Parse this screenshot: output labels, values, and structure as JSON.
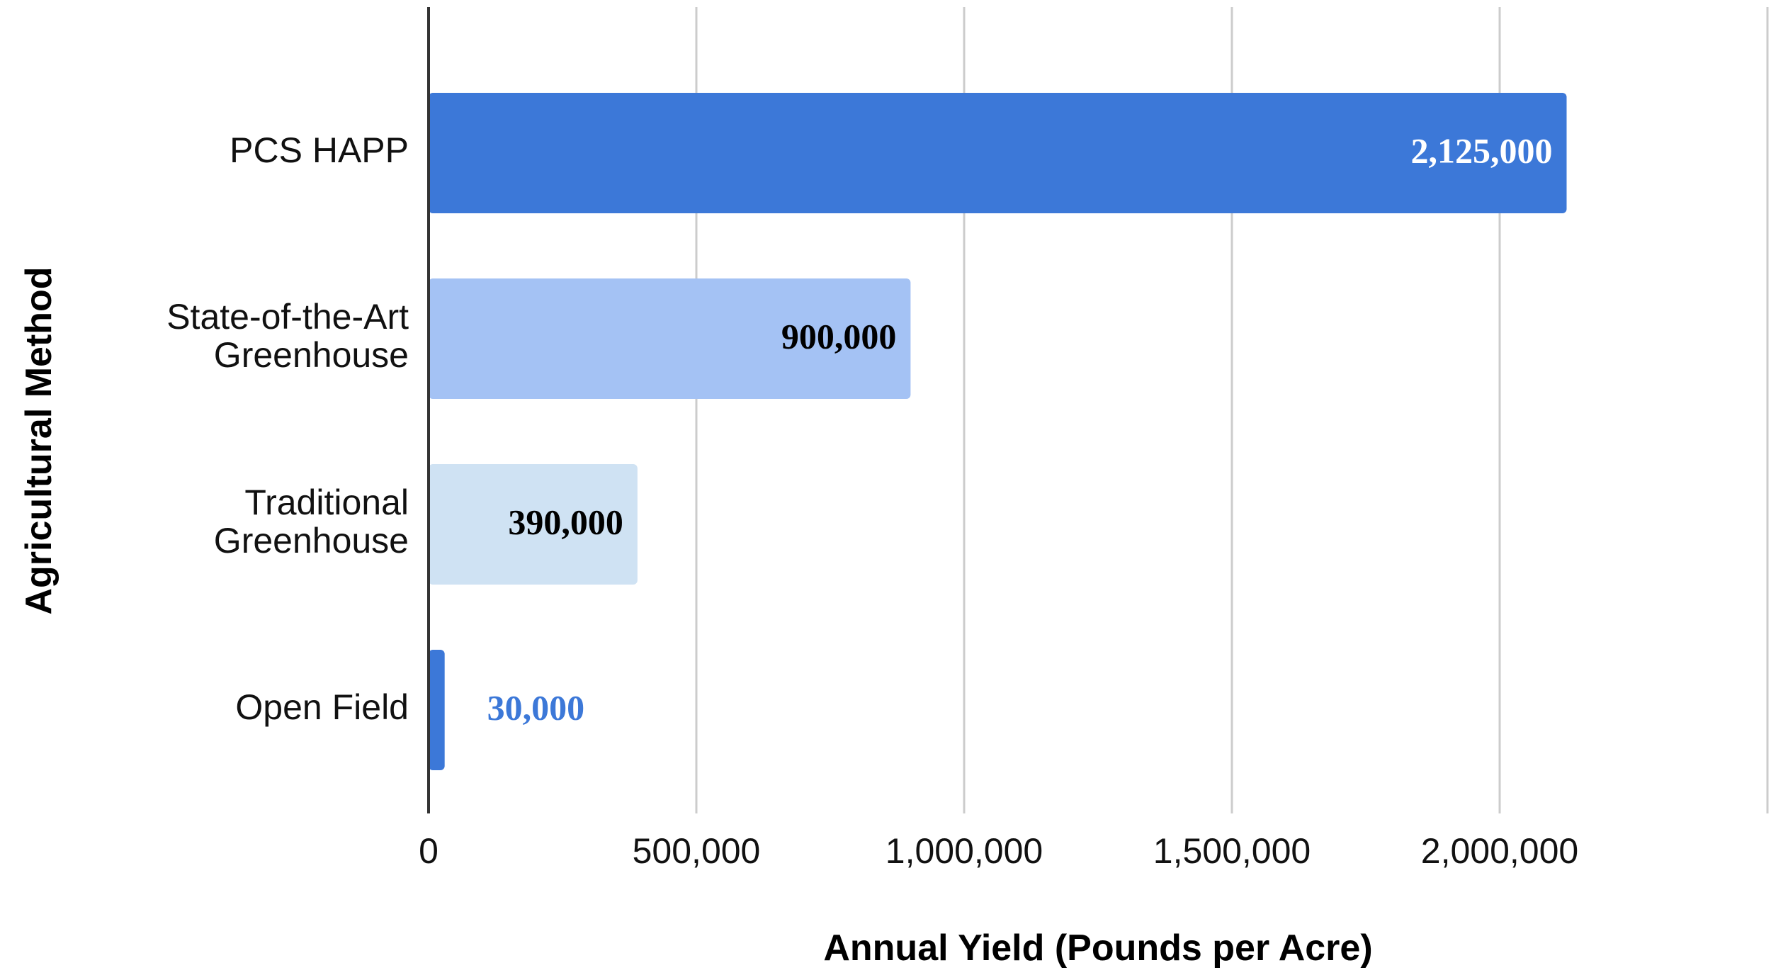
{
  "chart_data": {
    "type": "bar",
    "orientation": "horizontal",
    "categories": [
      [
        "PCS HAPP"
      ],
      [
        "State-of-the-Art",
        "Greenhouse"
      ],
      [
        "Traditional",
        "Greenhouse"
      ],
      [
        "Open Field"
      ]
    ],
    "values": [
      2125000,
      900000,
      390000,
      30000
    ],
    "value_labels": [
      "2,125,000",
      "900,000",
      "390,000",
      "30,000"
    ],
    "bar_colors": [
      "#3c78d8",
      "#a4c2f4",
      "#cfe2f3",
      "#3c78d8"
    ],
    "label_colors": [
      "#ffffff",
      "#000000",
      "#000000",
      "#3c78d8"
    ],
    "label_placement": [
      "inside",
      "inside",
      "inside",
      "outside"
    ],
    "xlabel": "Annual Yield (Pounds per Acre)",
    "ylabel": "Agricultural Method",
    "xlim": [
      0,
      2500000
    ],
    "x_ticks": [
      0,
      500000,
      1000000,
      1500000,
      2000000,
      2500000
    ],
    "x_tick_labels": [
      "0",
      "500,000",
      "1,000,000",
      "1,500,000",
      "2,000,000",
      ""
    ],
    "grid": true,
    "legend": "none"
  },
  "colors": {
    "grid": "#cccccc",
    "axis": "#333333"
  }
}
